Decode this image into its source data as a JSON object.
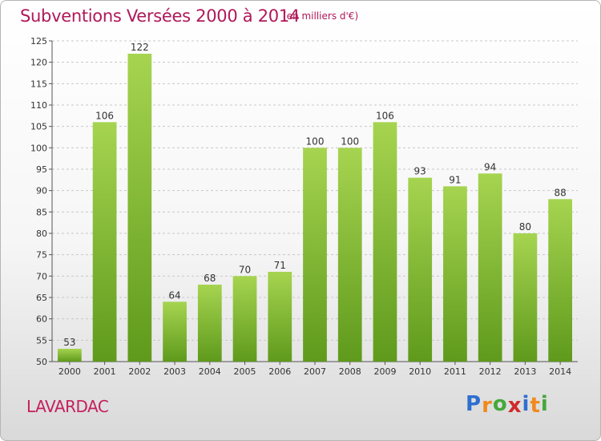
{
  "header": {
    "title": "Subventions Versées 2000 à 2014",
    "subtitle": "(en milliers d'€)"
  },
  "footer": {
    "place": "LAVARDAC",
    "logo_letters": [
      {
        "ch": "P",
        "color": "#2f6fd0"
      },
      {
        "ch": "r",
        "color": "#f08a1e"
      },
      {
        "ch": "o",
        "color": "#45a83a"
      },
      {
        "ch": "x",
        "color": "#d12a2a"
      },
      {
        "ch": "i",
        "color": "#2f6fd0"
      },
      {
        "ch": "t",
        "color": "#f08a1e"
      },
      {
        "ch": "i",
        "color": "#45a83a"
      }
    ]
  },
  "colors": {
    "bar_top": "#a6d450",
    "bar_bottom": "#5f9a1c",
    "grid": "#c8c8c8",
    "title": "#b0185a"
  },
  "chart_data": {
    "type": "bar",
    "title": "Subventions Versées 2000 à 2014",
    "subtitle": "(en milliers d'€)",
    "categories": [
      "2000",
      "2001",
      "2002",
      "2003",
      "2004",
      "2005",
      "2006",
      "2007",
      "2008",
      "2009",
      "2010",
      "2011",
      "2012",
      "2013",
      "2014"
    ],
    "values": [
      53,
      106,
      122,
      64,
      68,
      70,
      71,
      100,
      100,
      106,
      93,
      91,
      94,
      80,
      88
    ],
    "ylim": [
      50,
      125
    ],
    "yticks": [
      50,
      55,
      60,
      65,
      70,
      75,
      80,
      85,
      90,
      95,
      100,
      105,
      110,
      115,
      120,
      125
    ],
    "grid": true,
    "xlabel": "",
    "ylabel": ""
  }
}
